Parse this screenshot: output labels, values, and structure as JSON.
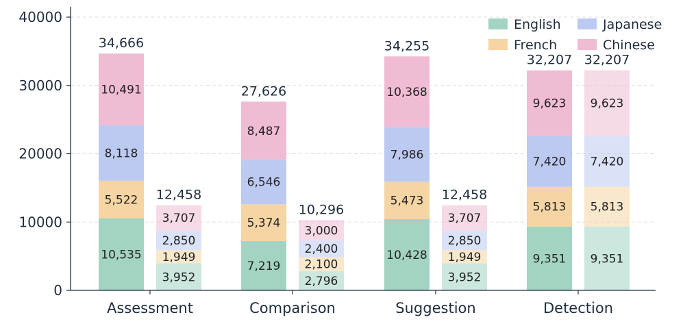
{
  "chart_data": {
    "type": "bar",
    "stacked": true,
    "categories": [
      "Assessment",
      "Comparison",
      "Suggestion",
      "Detection"
    ],
    "bars_per_category": 2,
    "series": [
      {
        "name": "English",
        "color": "#a3d4c1",
        "values": [
          [
            10535,
            3952
          ],
          [
            7219,
            2796
          ],
          [
            10428,
            3952
          ],
          [
            9351,
            9351
          ]
        ]
      },
      {
        "name": "French",
        "color": "#f5d5a4",
        "values": [
          [
            5522,
            1949
          ],
          [
            5374,
            2100
          ],
          [
            5473,
            1949
          ],
          [
            5813,
            5813
          ]
        ]
      },
      {
        "name": "Japanese",
        "color": "#bccaf1",
        "values": [
          [
            8118,
            2850
          ],
          [
            6546,
            2400
          ],
          [
            7986,
            2850
          ],
          [
            7420,
            7420
          ]
        ]
      },
      {
        "name": "Chinese",
        "color": "#f0bcd4",
        "values": [
          [
            10491,
            3707
          ],
          [
            8487,
            3000
          ],
          [
            10368,
            3707
          ],
          [
            9623,
            9623
          ]
        ]
      }
    ],
    "value_labels": [
      [
        [
          "10,535",
          "5,522",
          "8,118",
          "10,491"
        ],
        [
          "3,952",
          "1,949",
          "2,850",
          "3,707"
        ]
      ],
      [
        [
          "7,219",
          "5,374",
          "6,546",
          "8,487"
        ],
        [
          "2,796",
          "2,100",
          "2,400",
          "3,000"
        ]
      ],
      [
        [
          "10,428",
          "5,473",
          "7,986",
          "10,368"
        ],
        [
          "3,952",
          "1,949",
          "2,850",
          "3,707"
        ]
      ],
      [
        [
          "9,351",
          "5,813",
          "7,420",
          "9,623"
        ],
        [
          "9,351",
          "5,813",
          "7,420",
          "9,623"
        ]
      ]
    ],
    "totals": [
      [
        "34,666",
        "12,458"
      ],
      [
        "27,626",
        "10,296"
      ],
      [
        "34,255",
        "12,458"
      ],
      [
        "32,207",
        "32,207"
      ]
    ],
    "second_bar_style": "faded",
    "ylim": [
      0,
      40000
    ],
    "yticks": [
      "0",
      "10000",
      "20000",
      "30000",
      "40000"
    ],
    "ytick_values": [
      0,
      10000,
      20000,
      30000,
      40000
    ],
    "grid": "horizontal dashed",
    "legend": {
      "position": "top-right",
      "columns": 2,
      "order": [
        "English",
        "Japanese",
        "French",
        "Chinese"
      ]
    },
    "title": "",
    "xlabel": "",
    "ylabel": ""
  }
}
